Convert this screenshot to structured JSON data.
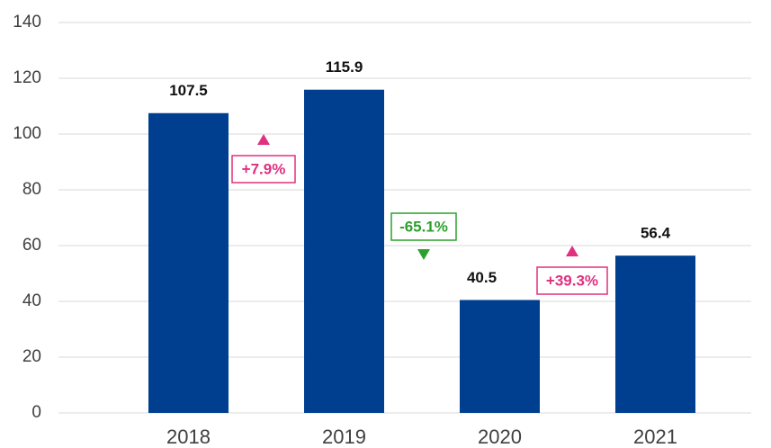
{
  "chart_data": {
    "type": "bar",
    "categories": [
      "2018",
      "2019",
      "2020",
      "2021"
    ],
    "values": [
      107.5,
      115.9,
      40.5,
      56.4
    ],
    "color": "#003f8f",
    "ylim": [
      0,
      140
    ],
    "yticks": [
      0,
      20,
      40,
      60,
      80,
      100,
      120,
      140
    ],
    "grid": true,
    "annotations": [
      {
        "value": 7.9,
        "label": "+7.9%",
        "color": "#e0307f"
      },
      {
        "value": -65.1,
        "label": "-65.1%",
        "color": "#2ca02c"
      },
      {
        "value": 39.3,
        "label": "+39.3%",
        "color": "#e0307f"
      }
    ]
  }
}
